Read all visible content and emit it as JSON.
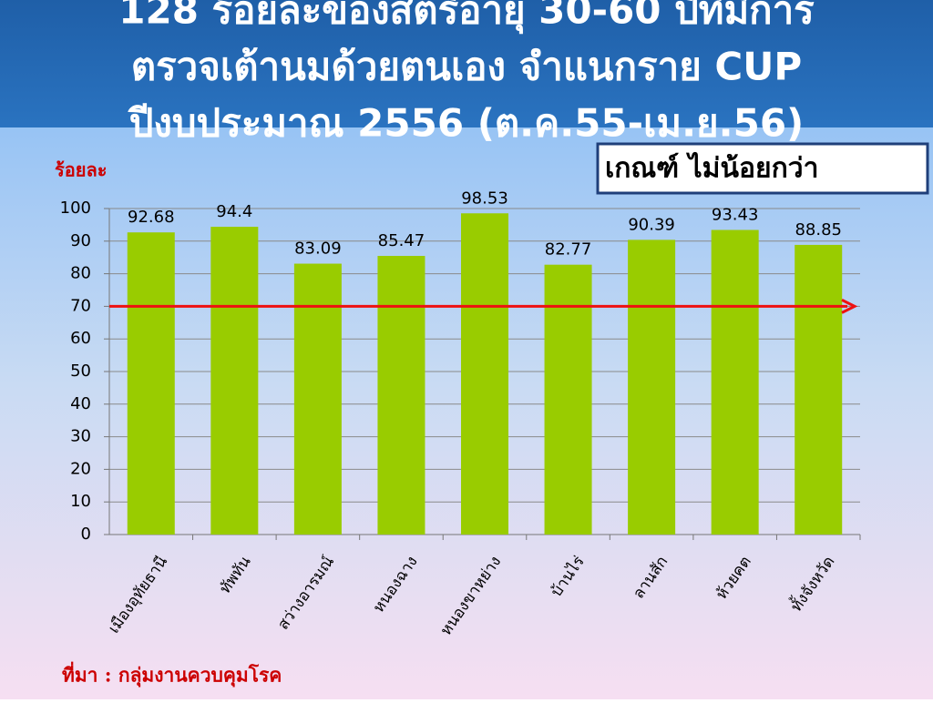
{
  "chart_data": {
    "type": "bar",
    "title_lines": [
      "128 ร้อยละของสตรีอายุ 30-60 ปีที่มีการ",
      "ตรวจเต้านมด้วยตนเอง จำแนกราย CUP",
      "ปีงบประมาณ 2556 (ต.ค.55-เม.ย.56)"
    ],
    "y_label": "ร้อยละ",
    "annotation": "เกณฑ์ ไม่น้อยกว่า",
    "source": "ที่มา : กลุ่มงานควบคุมโรค",
    "categories": [
      "เมืองอุทัยธานี",
      "ทัพทัน",
      "สว่างอารมณ์",
      "หนองฉาง",
      "หนองขาหย่าง",
      "บ้านไร่",
      "ลานสัก",
      "ห้วยคต",
      "ทั้งจังหวัด"
    ],
    "values": [
      92.68,
      94.4,
      83.09,
      85.47,
      98.53,
      82.77,
      90.39,
      93.43,
      88.85
    ],
    "color": "#99cc00",
    "threshold": 70,
    "threshold_color": "#ee1111",
    "ylim": [
      0,
      100
    ],
    "yticks": [
      0,
      10,
      20,
      30,
      40,
      50,
      60,
      70,
      80,
      90,
      100
    ],
    "grid": true
  }
}
